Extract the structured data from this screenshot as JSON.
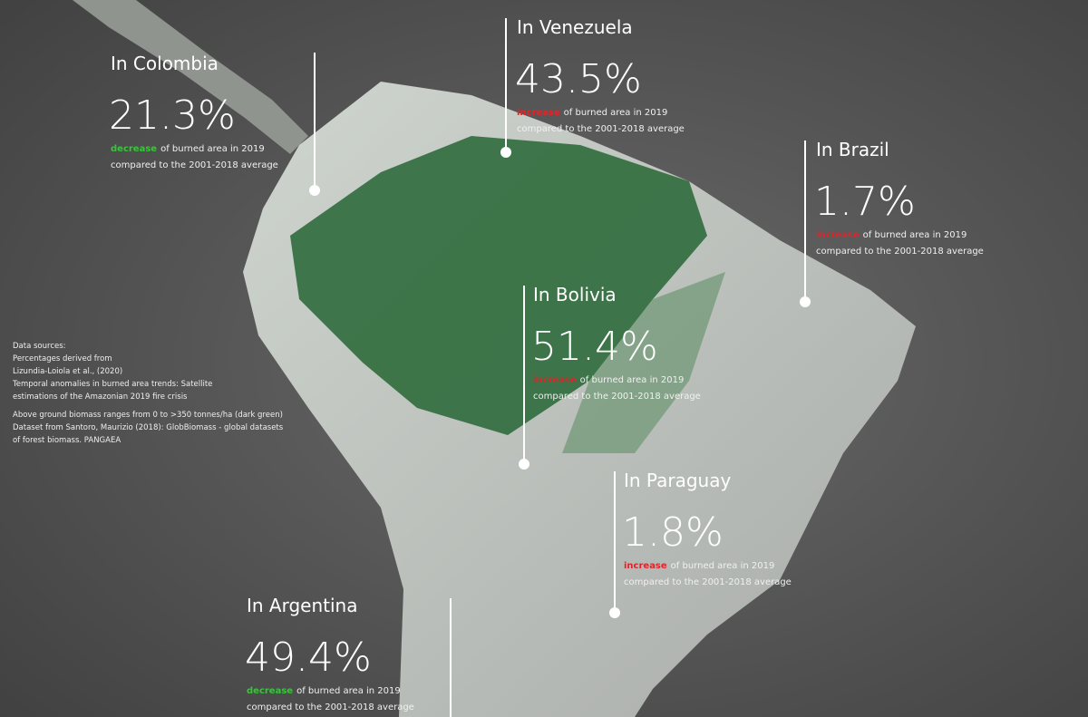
{
  "callouts": [
    {
      "label": "In Colombia",
      "value": "21.3%",
      "change": "decrease",
      "text": "of burned area in 2019",
      "comparison": "compared to the 2001-2018 average"
    },
    {
      "label": "In Venezuela",
      "value": "43.5%",
      "change": "increase",
      "text": "of burned area in 2019",
      "comparison": "compared to the 2001-2018 average"
    },
    {
      "label": "In Brazil",
      "value": "1.7%",
      "change": "increase",
      "text": "of burned area in 2019",
      "comparison": "compared to the 2001-2018 average"
    },
    {
      "label": "In Bolivia",
      "value": "51.4%",
      "change": "increase",
      "text": "of burned area in 2019",
      "comparison": "compared to the 2001-2018 average"
    },
    {
      "label": "In Paraguay",
      "value": "1.8%",
      "change": "increase",
      "text": "of burned area in 2019",
      "comparison": "compared to the 2001-2018 average"
    },
    {
      "label": "In Argentina",
      "value": "49.4%",
      "change": "decrease",
      "text": "of burned area in 2019",
      "comparison": "compared to the 2001-2018 average"
    }
  ],
  "sources": [
    "Data sources:",
    "Percentages derived from",
    "Lizundia-Loiola et al., (2020)",
    "Temporal anomalies in burned area trends: Satellite",
    "estimations of the Amazonian 2019 fire crisis",
    "Above ground biomass ranges from 0 to >350 tonnes/ha (dark green)",
    "Dataset from Santoro, Maurizio (2018): GlobBiomass - global datasets",
    "of forest biomass. PANGAEA"
  ]
}
